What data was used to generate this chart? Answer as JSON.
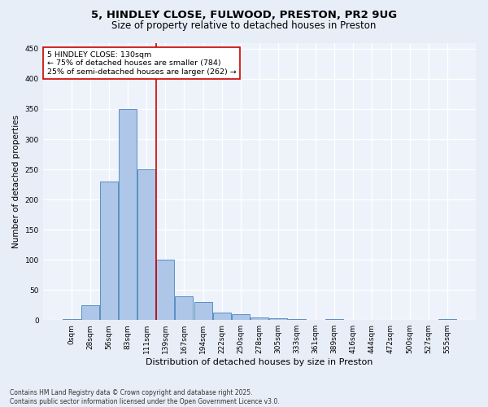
{
  "title_line1": "5, HINDLEY CLOSE, FULWOOD, PRESTON, PR2 9UG",
  "title_line2": "Size of property relative to detached houses in Preston",
  "xlabel": "Distribution of detached houses by size in Preston",
  "ylabel": "Number of detached properties",
  "categories": [
    "0sqm",
    "28sqm",
    "56sqm",
    "83sqm",
    "111sqm",
    "139sqm",
    "167sqm",
    "194sqm",
    "222sqm",
    "250sqm",
    "278sqm",
    "305sqm",
    "333sqm",
    "361sqm",
    "389sqm",
    "416sqm",
    "444sqm",
    "472sqm",
    "500sqm",
    "527sqm",
    "555sqm"
  ],
  "values": [
    2,
    25,
    230,
    350,
    250,
    100,
    40,
    30,
    13,
    10,
    5,
    3,
    1,
    0,
    1,
    0,
    0,
    0,
    0,
    0,
    2
  ],
  "bar_color": "#aec6e8",
  "bar_edge_color": "#5a8fc2",
  "vline_color": "#cc0000",
  "annotation_text": "5 HINDLEY CLOSE: 130sqm\n← 75% of detached houses are smaller (784)\n25% of semi-detached houses are larger (262) →",
  "annotation_box_color": "#ffffff",
  "annotation_box_edge_color": "#cc0000",
  "ylim": [
    0,
    460
  ],
  "yticks": [
    0,
    50,
    100,
    150,
    200,
    250,
    300,
    350,
    400,
    450
  ],
  "footnote": "Contains HM Land Registry data © Crown copyright and database right 2025.\nContains public sector information licensed under the Open Government Licence v3.0.",
  "bg_color": "#e8eef8",
  "plot_bg_color": "#edf2fb",
  "grid_color": "#ffffff",
  "title_fontsize": 9.5,
  "subtitle_fontsize": 8.5,
  "xlabel_fontsize": 8,
  "ylabel_fontsize": 7.5,
  "tick_fontsize": 6.5,
  "footnote_fontsize": 5.5,
  "annotation_fontsize": 6.8
}
